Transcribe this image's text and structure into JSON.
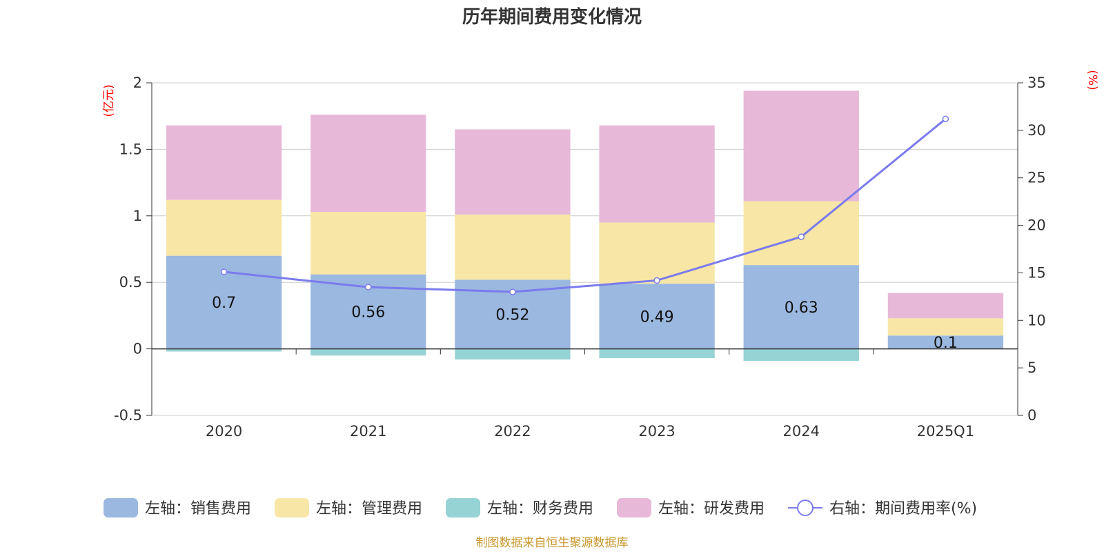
{
  "chart_data": {
    "type": "bar",
    "title": "历年期间费用变化情况",
    "categories": [
      "2020",
      "2021",
      "2022",
      "2023",
      "2024",
      "2025Q1"
    ],
    "left_axis": {
      "unit": "(亿元)",
      "ylim": [
        -0.5,
        2
      ],
      "ticks": [
        "2",
        "1.5",
        "1",
        "0.5",
        "0",
        "-0.5"
      ],
      "tick_values": [
        2,
        1.5,
        1,
        0.5,
        0,
        -0.5
      ]
    },
    "right_axis": {
      "unit": "(%)",
      "ylim": [
        0,
        35
      ],
      "ticks": [
        "35",
        "30",
        "25",
        "20",
        "15",
        "10",
        "5",
        "0"
      ],
      "tick_values": [
        35,
        30,
        25,
        20,
        15,
        10,
        5,
        0
      ]
    },
    "series": [
      {
        "name": "左轴：销售费用",
        "axis": "left",
        "color": "#9bb8e0",
        "values": [
          0.7,
          0.56,
          0.52,
          0.49,
          0.63,
          0.1
        ]
      },
      {
        "name": "左轴：管理费用",
        "axis": "left",
        "color": "#f7e6a6",
        "values": [
          0.42,
          0.47,
          0.49,
          0.46,
          0.48,
          0.13
        ]
      },
      {
        "name": "左轴：财务费用",
        "axis": "left",
        "color": "#96d3d4",
        "values": [
          -0.02,
          -0.05,
          -0.08,
          -0.07,
          -0.09,
          0
        ]
      },
      {
        "name": "左轴：研发费用",
        "axis": "left",
        "color": "#e8b8d9",
        "values": [
          0.56,
          0.73,
          0.64,
          0.73,
          0.83,
          0.19
        ]
      },
      {
        "name": "右轴：期间费用率(%)",
        "axis": "right",
        "type": "line",
        "color": "#7b7bec",
        "values": [
          15.1,
          13.5,
          13.0,
          14.2,
          18.8,
          31.2
        ]
      }
    ],
    "data_labels": [
      "0.7",
      "0.56",
      "0.52",
      "0.49",
      "0.63",
      "0.1"
    ],
    "legend_position": "bottom",
    "grid": true
  },
  "footer": {
    "source": "制图数据来自恒生聚源数据库"
  }
}
